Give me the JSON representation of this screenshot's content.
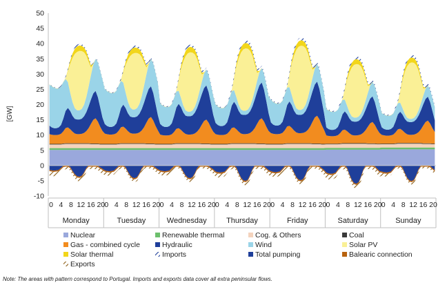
{
  "chart_data": {
    "type": "area",
    "ylabel": "[GW]",
    "ylim": [
      -10,
      50
    ],
    "yticks": [
      -10,
      -5,
      0,
      5,
      10,
      15,
      20,
      25,
      30,
      35,
      40,
      45,
      50
    ],
    "hour_tick_labels": [
      "0",
      "4",
      "8",
      "12",
      "16",
      "20"
    ],
    "days": [
      "Monday",
      "Tuesday",
      "Wednesday",
      "Thursday",
      "Friday",
      "Saturday",
      "Sunday"
    ],
    "grid": false,
    "legend_placement": "bottom",
    "stack_order": [
      "Nuclear",
      "Renewable thermal",
      "Cog. & Others",
      "Coal",
      "Gas - combined cycle",
      "Hydraulic",
      "Wind",
      "Solar PV",
      "Solar thermal",
      "Imports"
    ],
    "negative_order": [
      "Total pumping",
      "Balearic connection",
      "Exports"
    ],
    "series": [
      {
        "name": "Nuclear",
        "color": "#9aa8dc",
        "hourly": [
          5.1,
          5.1,
          5.1,
          5.1,
          5.1,
          5.1,
          5.1,
          5.1,
          5.1,
          5.1,
          5.1,
          5.1,
          5.1,
          5.1,
          5.1,
          5.1,
          5.1,
          5.1,
          5.1,
          5.1,
          5.1,
          5.1,
          5.1,
          5.1
        ],
        "daily_scale": [
          1,
          1,
          1,
          1,
          1,
          1.02,
          1.04
        ]
      },
      {
        "name": "Renewable thermal",
        "color": "#6cbf6c",
        "hourly": [
          0.6,
          0.6,
          0.6,
          0.6,
          0.6,
          0.6,
          0.6,
          0.6,
          0.6,
          0.6,
          0.6,
          0.6,
          0.6,
          0.6,
          0.6,
          0.6,
          0.6,
          0.6,
          0.6,
          0.6,
          0.6,
          0.6,
          0.6,
          0.6
        ],
        "daily_scale": [
          1,
          1,
          1,
          1,
          1,
          1,
          1
        ]
      },
      {
        "name": "Cog. & Others",
        "color": "#f4d3bd",
        "hourly": [
          1.2,
          1.2,
          1.2,
          1.2,
          1.2,
          1.2,
          1.3,
          1.4,
          1.4,
          1.4,
          1.4,
          1.4,
          1.4,
          1.4,
          1.4,
          1.4,
          1.4,
          1.4,
          1.3,
          1.3,
          1.3,
          1.3,
          1.2,
          1.2
        ],
        "daily_scale": [
          1,
          1,
          1,
          1,
          1,
          0.95,
          0.9
        ]
      },
      {
        "name": "Coal",
        "color": "#3a3a3a",
        "hourly": [
          0.2,
          0.2,
          0.2,
          0.2,
          0.2,
          0.2,
          0.2,
          0.2,
          0.2,
          0.2,
          0.2,
          0.2,
          0.2,
          0.2,
          0.2,
          0.2,
          0.2,
          0.2,
          0.2,
          0.2,
          0.2,
          0.2,
          0.2,
          0.2
        ],
        "daily_scale": [
          1,
          1,
          1,
          1,
          1,
          1,
          1
        ]
      },
      {
        "name": "Gas - combined cycle",
        "color": "#f28c1f",
        "hourly": [
          3.2,
          3.0,
          2.9,
          2.9,
          3.0,
          3.3,
          4.0,
          5.0,
          5.2,
          4.6,
          3.8,
          3.2,
          3.0,
          3.0,
          3.1,
          3.4,
          4.0,
          5.0,
          6.5,
          7.8,
          8.3,
          7.2,
          5.6,
          4.2
        ],
        "daily_scale": [
          1,
          1.05,
          0.95,
          1.0,
          1.1,
          0.85,
          0.9
        ]
      },
      {
        "name": "Hydraulic",
        "color": "#1f3f9a",
        "hourly": [
          3.5,
          3.0,
          2.8,
          2.8,
          3.0,
          3.6,
          5.2,
          7.0,
          8.0,
          7.5,
          6.5,
          6.0,
          6.0,
          6.0,
          6.2,
          6.8,
          7.8,
          9.0,
          10.0,
          10.8,
          11.2,
          10.0,
          8.0,
          5.5
        ],
        "daily_scale": [
          0.8,
          0.9,
          1.0,
          1.05,
          1.0,
          0.75,
          0.7
        ]
      },
      {
        "name": "Wind",
        "color": "#9ad4e8",
        "hourly": [
          13.5,
          13.5,
          13.3,
          13.0,
          12.8,
          12.6,
          12.0,
          10.5,
          8.5,
          6.0,
          4.5,
          3.5,
          3.0,
          3.0,
          3.2,
          3.8,
          5.0,
          6.5,
          8.0,
          9.5,
          10.5,
          11.5,
          12.0,
          12.5
        ],
        "daily_scale": [
          1.0,
          0.85,
          0.5,
          0.45,
          0.55,
          0.45,
          0.35
        ]
      },
      {
        "name": "Solar PV",
        "color": "#faf096",
        "hourly": [
          0,
          0,
          0,
          0,
          0,
          0,
          0,
          0.3,
          3.5,
          9.5,
          14.5,
          17.8,
          19.2,
          19.5,
          19.0,
          17.2,
          13.5,
          8.0,
          2.5,
          0.2,
          0,
          0,
          0,
          0
        ],
        "daily_scale": [
          1.0,
          0.95,
          1.0,
          1.05,
          1.08,
          0.9,
          0.95
        ]
      },
      {
        "name": "Solar thermal",
        "color": "#f2d61b",
        "hourly": [
          0.05,
          0.05,
          0.05,
          0.05,
          0.05,
          0.05,
          0.05,
          0.1,
          0.4,
          1.0,
          1.5,
          1.7,
          1.8,
          1.8,
          1.7,
          1.6,
          1.4,
          1.1,
          0.6,
          0.2,
          0.05,
          0.05,
          0.05,
          0.05
        ],
        "daily_scale": [
          1,
          1,
          1,
          1,
          1,
          0.9,
          0.9
        ]
      },
      {
        "name": "Imports",
        "color": "#5b6fb0",
        "pattern": "hatch",
        "hourly": [
          0.3,
          0.3,
          0.3,
          0.3,
          0.3,
          0.4,
          0.6,
          0.8,
          0.9,
          0.9,
          0.9,
          0.9,
          0.9,
          0.9,
          0.9,
          0.9,
          0.9,
          0.9,
          0.9,
          0.8,
          0.7,
          0.6,
          0.5,
          0.4
        ],
        "daily_scale": [
          0.6,
          0.7,
          0.8,
          1.0,
          1.0,
          1.0,
          1.0
        ]
      },
      {
        "name": "Total pumping",
        "color": "#1f3f9a",
        "hourly": [
          -1.8,
          -2.0,
          -2.1,
          -2.0,
          -1.8,
          -1.0,
          -0.2,
          0,
          0,
          -0.6,
          -2.2,
          -3.6,
          -4.4,
          -4.6,
          -4.2,
          -2.8,
          -1.0,
          0,
          0,
          0,
          0,
          -0.2,
          -0.8,
          -1.4
        ],
        "daily_scale": [
          0.8,
          0.9,
          0.9,
          1.1,
          1.05,
          1.3,
          1.1
        ]
      },
      {
        "name": "Balearic connection",
        "color": "#b8620e",
        "hourly": [
          -0.4,
          -0.4,
          -0.4,
          -0.4,
          -0.4,
          -0.4,
          -0.4,
          -0.4,
          -0.4,
          -0.4,
          -0.4,
          -0.4,
          -0.4,
          -0.4,
          -0.4,
          -0.4,
          -0.4,
          -0.4,
          -0.4,
          -0.4,
          -0.4,
          -0.4,
          -0.4,
          -0.4
        ],
        "daily_scale": [
          1,
          1,
          1,
          1,
          1,
          1,
          1
        ]
      },
      {
        "name": "Exports",
        "color": "#a0620e",
        "pattern": "hatch",
        "hourly": [
          -1.2,
          -1.2,
          -1.2,
          -1.1,
          -1.0,
          -0.9,
          -0.8,
          -0.7,
          -0.6,
          -0.6,
          -0.7,
          -0.8,
          -0.9,
          -1.0,
          -1.0,
          -0.9,
          -0.8,
          -0.7,
          -0.6,
          -0.6,
          -0.7,
          -0.8,
          -1.0,
          -1.1
        ],
        "daily_scale": [
          1.2,
          0.9,
          0.9,
          1.1,
          1.0,
          1.3,
          0.8
        ]
      }
    ],
    "note": "Note: The areas with pattern correspond to Portugal. Imports and exports data cover all extra peninsular flows."
  }
}
